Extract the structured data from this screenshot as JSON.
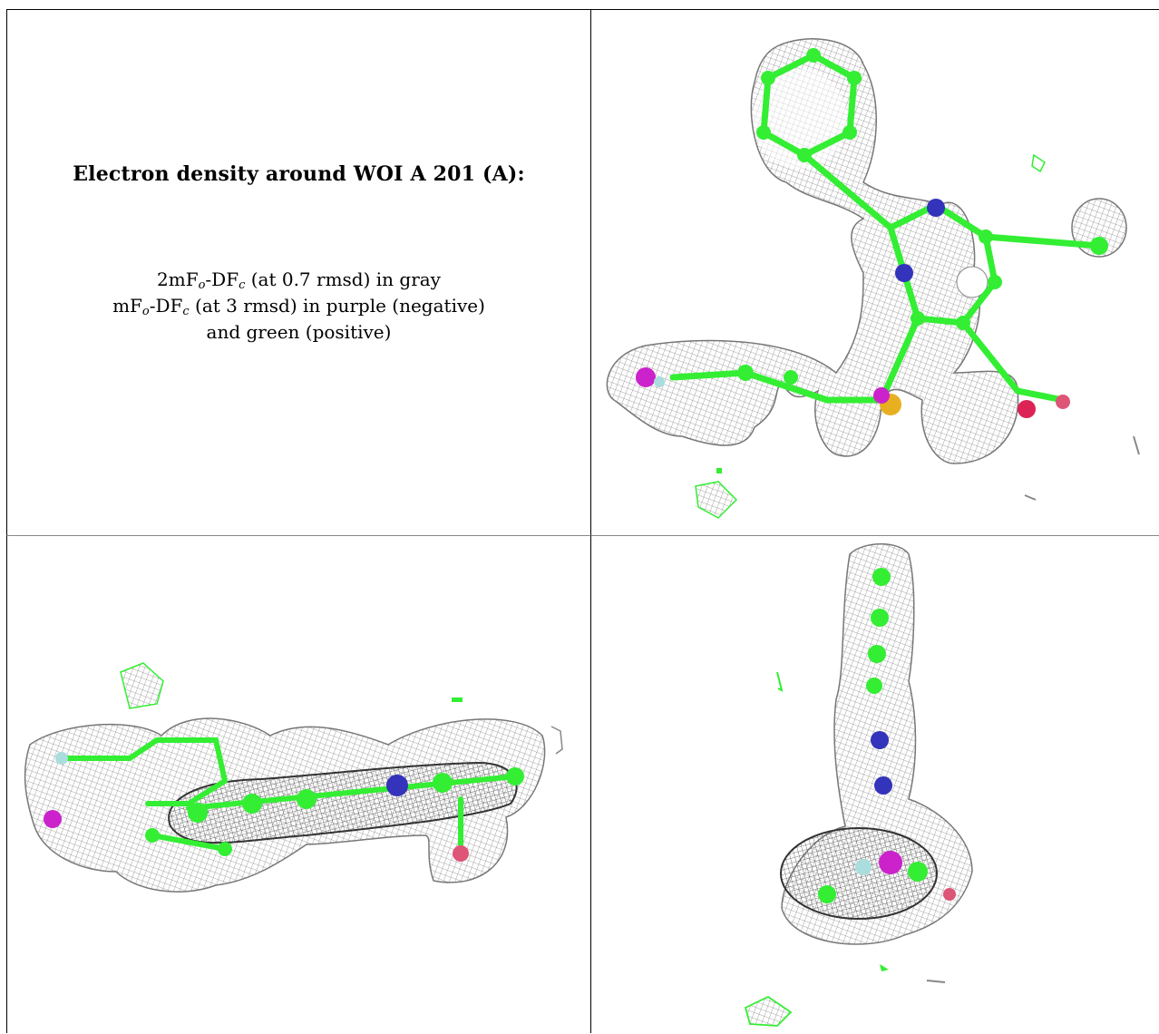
{
  "figure": {
    "title": "Electron density around WOI A 201 (A):",
    "caption": {
      "line1": {
        "a": "2mF",
        "a_sub": "o",
        "b": "-DF",
        "b_sub": "c",
        "rest": " (at 0.7 rmsd) in gray"
      },
      "line2": {
        "a": "mF",
        "a_sub": "o",
        "b": "-DF",
        "b_sub": "c",
        "rest": " (at 3 rmsd) in purple (negative)"
      },
      "line3": "and green (positive)"
    },
    "panels": [
      {
        "view": "top-right",
        "content": "molecule-mesh-render"
      },
      {
        "view": "bottom-left",
        "content": "molecule-mesh-render"
      },
      {
        "view": "bottom-right",
        "content": "molecule-mesh-render"
      }
    ]
  },
  "colors": {
    "mesh_gray": "#8c8c8c",
    "carbon_green": "#33ee33",
    "nitrogen_blue": "#3333bb",
    "oxygen_red": "#dd2255",
    "sulfur_yellow": "#e8b020",
    "negative_purple": "#cc22cc",
    "halogen_cyan": "#aadddd"
  }
}
